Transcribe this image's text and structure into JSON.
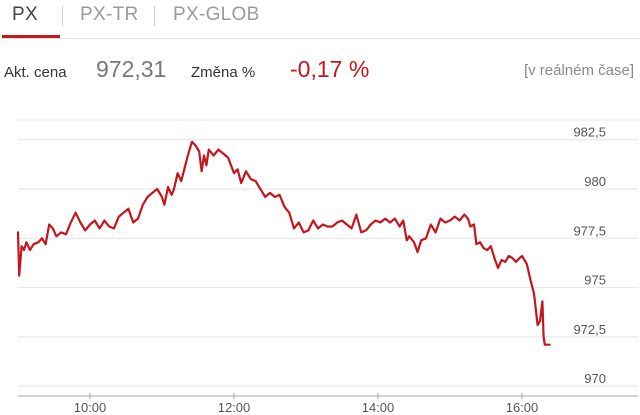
{
  "tabs": [
    {
      "label": "PX",
      "active": true
    },
    {
      "label": "PX-TR",
      "active": false
    },
    {
      "label": "PX-GLOB",
      "active": false
    }
  ],
  "stats": {
    "price_label": "Akt. cena",
    "price_value": "972,31",
    "change_label": "Změna %",
    "change_value": "-0,17 %",
    "realtime": "[v reálném čase]"
  },
  "colors": {
    "accent": "#c4161c",
    "line": "#c4161c"
  },
  "chart_data": {
    "type": "line",
    "title": "",
    "xlabel": "",
    "ylabel": "",
    "ylim": [
      969.5,
      983.5
    ],
    "xlim": [
      "09:00",
      "16:25"
    ],
    "y_ticks": [
      970,
      972.5,
      975,
      977.5,
      980,
      982.5
    ],
    "y_tick_labels": [
      "970",
      "972,5",
      "975",
      "977,5",
      "980",
      "982,5"
    ],
    "x_ticks": [
      "10:00",
      "12:00",
      "14:00",
      "16:00"
    ],
    "series": [
      {
        "points": [
          [
            "09:00",
            977.8
          ],
          [
            "09:01",
            975.6
          ],
          [
            "09:03",
            977.1
          ],
          [
            "09:05",
            976.9
          ],
          [
            "09:07",
            977.3
          ],
          [
            "09:10",
            976.9
          ],
          [
            "09:13",
            977.2
          ],
          [
            "09:17",
            977.3
          ],
          [
            "09:20",
            977.5
          ],
          [
            "09:23",
            977.2
          ],
          [
            "09:26",
            978.2
          ],
          [
            "09:29",
            978.0
          ],
          [
            "09:32",
            977.6
          ],
          [
            "09:36",
            977.8
          ],
          [
            "09:40",
            977.7
          ],
          [
            "09:44",
            978.3
          ],
          [
            "09:48",
            978.8
          ],
          [
            "09:52",
            978.3
          ],
          [
            "09:56",
            977.9
          ],
          [
            "10:00",
            978.2
          ],
          [
            "10:04",
            978.4
          ],
          [
            "10:08",
            978.0
          ],
          [
            "10:12",
            978.4
          ],
          [
            "10:16",
            978.1
          ],
          [
            "10:20",
            978.0
          ],
          [
            "10:24",
            978.6
          ],
          [
            "10:28",
            978.8
          ],
          [
            "10:32",
            979.0
          ],
          [
            "10:36",
            978.3
          ],
          [
            "10:40",
            978.5
          ],
          [
            "10:44",
            979.2
          ],
          [
            "10:48",
            979.6
          ],
          [
            "10:52",
            979.8
          ],
          [
            "10:56",
            980.0
          ],
          [
            "11:00",
            979.6
          ],
          [
            "11:02",
            979.2
          ],
          [
            "11:05",
            980.1
          ],
          [
            "11:08",
            979.7
          ],
          [
            "11:10",
            980.0
          ],
          [
            "11:13",
            980.8
          ],
          [
            "11:16",
            980.4
          ],
          [
            "11:19",
            981.1
          ],
          [
            "11:22",
            981.8
          ],
          [
            "11:25",
            982.4
          ],
          [
            "11:28",
            982.2
          ],
          [
            "11:31",
            981.9
          ],
          [
            "11:33",
            980.9
          ],
          [
            "11:35",
            981.7
          ],
          [
            "11:37",
            981.2
          ],
          [
            "11:39",
            982.0
          ],
          [
            "11:43",
            981.7
          ],
          [
            "11:47",
            982.0
          ],
          [
            "11:51",
            981.8
          ],
          [
            "11:55",
            981.6
          ],
          [
            "12:00",
            980.8
          ],
          [
            "12:03",
            981.0
          ],
          [
            "12:06",
            980.3
          ],
          [
            "12:10",
            980.9
          ],
          [
            "12:14",
            980.5
          ],
          [
            "12:18",
            980.4
          ],
          [
            "12:22",
            980.0
          ],
          [
            "12:26",
            979.6
          ],
          [
            "12:30",
            979.8
          ],
          [
            "12:34",
            979.6
          ],
          [
            "12:38",
            979.7
          ],
          [
            "12:42",
            979.1
          ],
          [
            "12:46",
            978.8
          ],
          [
            "12:50",
            978.0
          ],
          [
            "12:54",
            978.3
          ],
          [
            "12:58",
            977.8
          ],
          [
            "13:02",
            977.9
          ],
          [
            "13:06",
            978.4
          ],
          [
            "13:10",
            978.0
          ],
          [
            "13:14",
            978.2
          ],
          [
            "13:18",
            978.1
          ],
          [
            "13:22",
            978.1
          ],
          [
            "13:26",
            978.3
          ],
          [
            "13:30",
            978.4
          ],
          [
            "13:34",
            978.2
          ],
          [
            "13:38",
            978.0
          ],
          [
            "13:42",
            978.7
          ],
          [
            "13:46",
            977.8
          ],
          [
            "13:50",
            977.9
          ],
          [
            "13:54",
            978.2
          ],
          [
            "13:58",
            978.4
          ],
          [
            "14:02",
            978.3
          ],
          [
            "14:06",
            978.5
          ],
          [
            "14:10",
            978.3
          ],
          [
            "14:14",
            978.5
          ],
          [
            "14:18",
            978.1
          ],
          [
            "14:21",
            978.4
          ],
          [
            "14:24",
            977.4
          ],
          [
            "14:26",
            977.6
          ],
          [
            "14:30",
            977.3
          ],
          [
            "14:33",
            976.8
          ],
          [
            "14:36",
            977.4
          ],
          [
            "14:40",
            977.5
          ],
          [
            "14:44",
            978.2
          ],
          [
            "14:48",
            977.8
          ],
          [
            "14:52",
            978.5
          ],
          [
            "14:56",
            978.3
          ],
          [
            "15:00",
            978.4
          ],
          [
            "15:04",
            978.6
          ],
          [
            "15:08",
            978.4
          ],
          [
            "15:12",
            978.7
          ],
          [
            "15:15",
            978.5
          ],
          [
            "15:17",
            978.1
          ],
          [
            "15:20",
            978.2
          ],
          [
            "15:22",
            977.2
          ],
          [
            "15:25",
            977.3
          ],
          [
            "15:28",
            977.0
          ],
          [
            "15:31",
            976.9
          ],
          [
            "15:34",
            977.1
          ],
          [
            "15:37",
            976.5
          ],
          [
            "15:40",
            976.0
          ],
          [
            "15:43",
            976.4
          ],
          [
            "15:46",
            976.3
          ],
          [
            "15:49",
            976.6
          ],
          [
            "15:52",
            976.5
          ],
          [
            "15:55",
            976.3
          ],
          [
            "15:58",
            976.5
          ],
          [
            "16:00",
            976.6
          ],
          [
            "16:04",
            976.2
          ],
          [
            "16:07",
            975.4
          ],
          [
            "16:10",
            974.7
          ],
          [
            "16:13",
            973.1
          ],
          [
            "16:15",
            973.3
          ],
          [
            "16:17",
            974.3
          ],
          [
            "16:18",
            972.5
          ],
          [
            "16:19",
            972.1
          ],
          [
            "16:22",
            972.1
          ],
          [
            "16:23",
            972.1
          ]
        ]
      }
    ]
  }
}
